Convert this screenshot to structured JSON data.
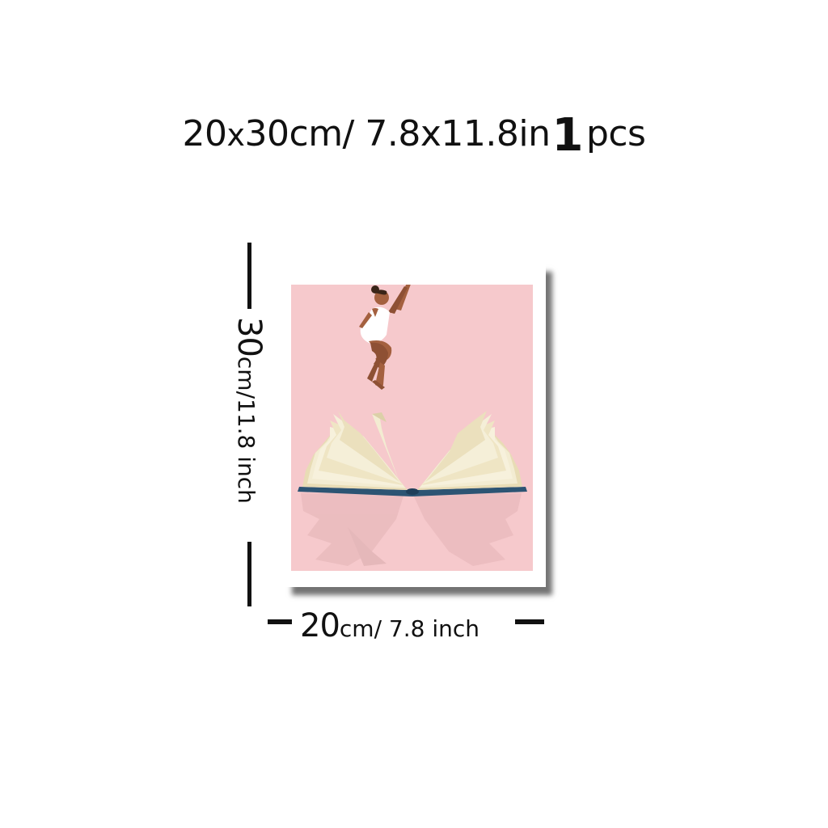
{
  "headline": {
    "size_cm": "20",
    "x": "x",
    "size_rest": "30cm/ 7.8x11.8in",
    "qty_number": "1",
    "qty_unit": "pcs"
  },
  "height_dimension": {
    "value": "30",
    "unit_text": "cm/11.8 inch"
  },
  "width_dimension": {
    "value": "20",
    "unit_text": "cm/ 7.8 inch"
  },
  "poster": {
    "image": "poster-girl-jumping-from-open-book",
    "colors": {
      "background": "#f6c9cc",
      "skin": "#a4603f",
      "swimsuit": "#ffffff",
      "pages": "#f3ecd2",
      "cover": "#2c5473"
    }
  }
}
